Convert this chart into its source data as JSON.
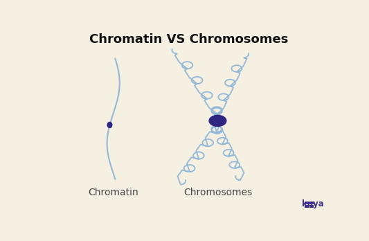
{
  "title": "Chromatin VS Chromosomes",
  "bg_color": "#f5f0e1",
  "line_color": "#93b8d8",
  "centromere_color": "#2e2680",
  "label_chromatin": "Chromatin",
  "label_chromosomes": "Chromosomes",
  "label_color": "#444444",
  "knya_color": "#3d2f8a",
  "title_fontsize": 13,
  "label_fontsize": 10,
  "line_width": 1.3
}
